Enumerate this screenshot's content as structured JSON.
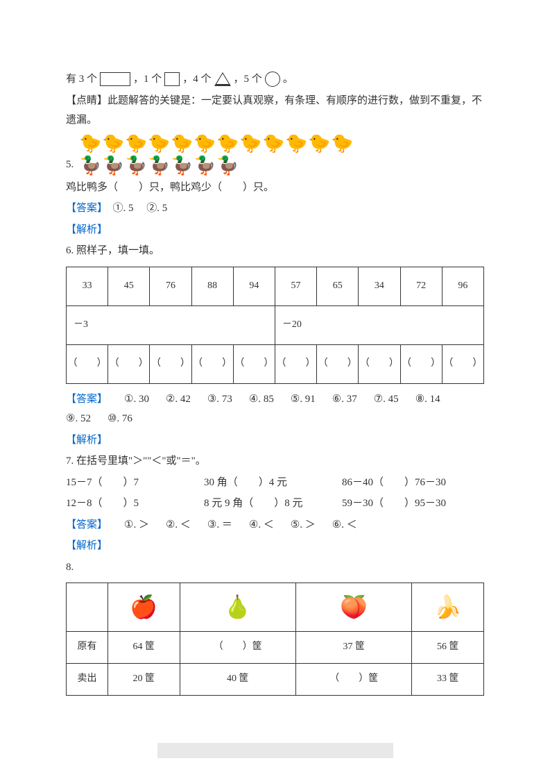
{
  "shapes": {
    "prefix": "有 3 个",
    "p2": "，1 个",
    "p3": "，4 个",
    "p4": "，5 个",
    "p5": "。"
  },
  "tip": {
    "label": "【点睛】",
    "text": "此题解答的关键是：一定要认真观察，有条理、有顺序的进行数，做到不重复，不遗漏。"
  },
  "q5": {
    "num": "5.",
    "chicken_count": 12,
    "duck_count": 7,
    "question": "鸡比鸭多（　　）只，鸭比鸡少（　　）只。",
    "ans_label": "【答案】",
    "ans": "　①. 5　 ②. 5",
    "parse_label": "【解析】"
  },
  "q6": {
    "num": "6.",
    "title": "照样子，填一填。",
    "row1": [
      "33",
      "45",
      "76",
      "88",
      "94",
      "57",
      "65",
      "34",
      "72",
      "96"
    ],
    "op1": "－3",
    "op2": "－20",
    "blank": "（　　）",
    "ans_label": "【答案】",
    "answers": [
      "①. 30",
      "②. 42",
      "③. 73",
      "④. 85",
      "⑤. 91",
      "⑥. 37",
      "⑦. 45",
      "⑧. 14",
      "⑨. 52",
      "⑩. 76"
    ],
    "parse_label": "【解析】"
  },
  "q7": {
    "num": "7.",
    "title": "在括号里填\"＞\"\"＜\"或\"＝\"。",
    "r1": [
      "15－7（　　）7",
      "30 角（　　）4 元",
      "86－40（　　）76－30"
    ],
    "r2": [
      "12－8（　　）5",
      "8 元 9 角（　　）8 元",
      "59－30（　　）95－30"
    ],
    "ans_label": "【答案】",
    "answers": [
      "①. ＞",
      "②. ＜",
      "③. ＝",
      "④. ＜",
      "⑤. ＞",
      "⑥. ＜"
    ],
    "parse_label": "【解析】"
  },
  "q8": {
    "num": "8.",
    "fruits": [
      "🍎",
      "🍐",
      "🍑",
      "🍌"
    ],
    "row_labels": [
      "原有",
      "卖出"
    ],
    "r1": [
      "64 筐",
      "（　　）筐",
      "37 筐",
      "56 筐"
    ],
    "r2": [
      "20 筐",
      "40 筐",
      "（　　）筐",
      "33 筐"
    ]
  }
}
